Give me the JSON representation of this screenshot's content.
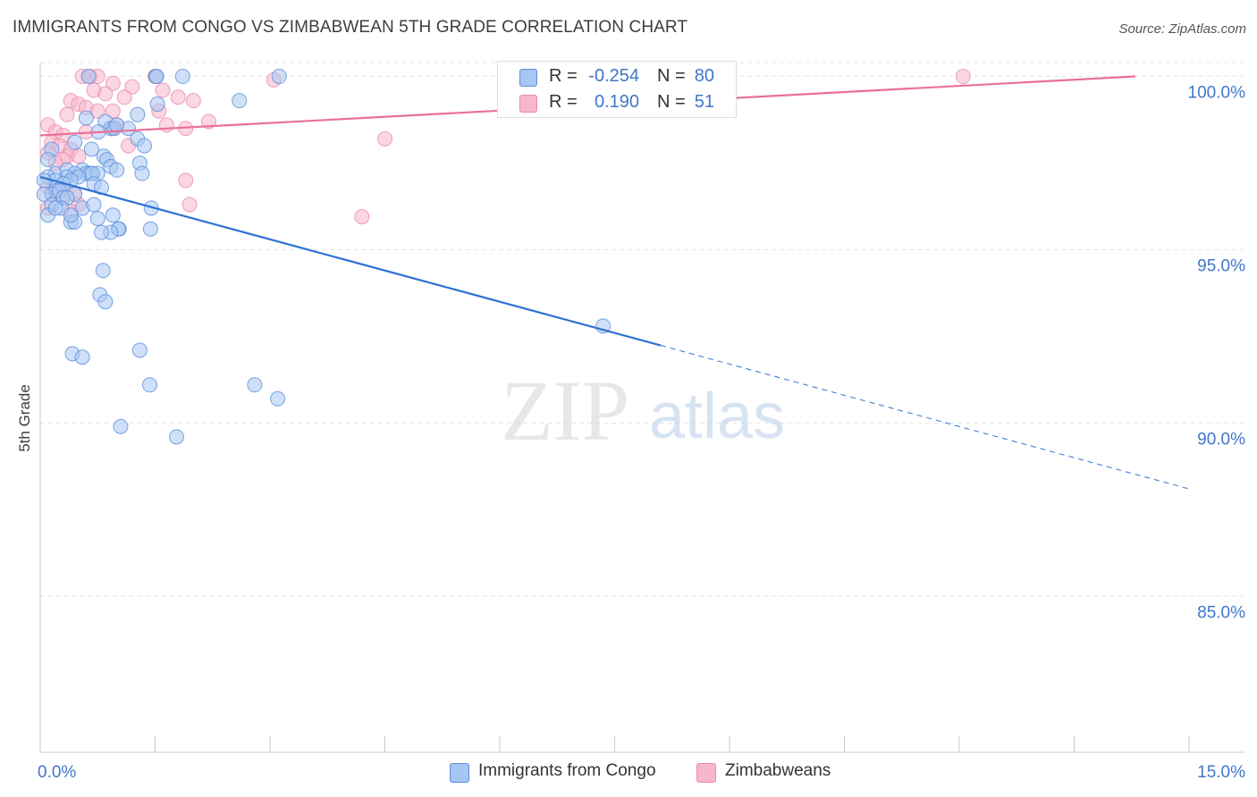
{
  "title": "IMMIGRANTS FROM CONGO VS ZIMBABWEAN 5TH GRADE CORRELATION CHART",
  "source": "Source: ZipAtlas.com",
  "watermark": {
    "zip": "ZIP",
    "atlas": "atlas"
  },
  "colors": {
    "blue_fill": "#a8c6f2",
    "blue_stroke": "#5a8fdc",
    "blue_line": "#2f72d4",
    "pink_fill": "#f6b6cb",
    "pink_stroke": "#ec8aab",
    "pink_line": "#e8709a",
    "tick_text": "#3f77c9",
    "grid": "#e6e6e6"
  },
  "legend_top": [
    {
      "r_label": "R =",
      "r_value": "-0.254",
      "n_label": "N =",
      "n_value": "80"
    },
    {
      "r_label": "R =",
      "r_value": "0.190",
      "n_label": "N =",
      "n_value": "51"
    }
  ],
  "legend_bottom": [
    "Immigrants from Congo",
    "Zimbabweans"
  ],
  "chart_data": {
    "type": "scatter",
    "title": "IMMIGRANTS FROM CONGO VS ZIMBABWEAN 5TH GRADE CORRELATION CHART",
    "xlabel": "",
    "ylabel": "5th Grade",
    "xlim": [
      0,
      15
    ],
    "ylim": [
      80.5,
      100.4
    ],
    "x_tick_labels": [
      "0.0%",
      "15.0%"
    ],
    "y_ticks": [
      85,
      90,
      95,
      100
    ],
    "y_tick_labels": [
      "85.0%",
      "90.0%",
      "95.0%",
      "100.0%"
    ],
    "grid": true,
    "legend_position": "bottom",
    "series": [
      {
        "name": "Immigrants from Congo",
        "r": -0.254,
        "n": 80,
        "trend": {
          "x0": 0,
          "y0": 97.1,
          "x1": 15,
          "y1": 88.1,
          "solid_until_x": 8.1
        },
        "points": [
          [
            0.63,
            100.0
          ],
          [
            1.51,
            100.0
          ],
          [
            1.52,
            100.0
          ],
          [
            1.86,
            100.0
          ],
          [
            3.12,
            100.0
          ],
          [
            2.6,
            99.3
          ],
          [
            1.53,
            99.2
          ],
          [
            1.27,
            98.9
          ],
          [
            0.6,
            98.8
          ],
          [
            0.85,
            98.7
          ],
          [
            0.92,
            98.5
          ],
          [
            0.97,
            98.5
          ],
          [
            1.15,
            98.5
          ],
          [
            0.76,
            98.4
          ],
          [
            1.27,
            98.2
          ],
          [
            1.36,
            98.0
          ],
          [
            0.45,
            98.1
          ],
          [
            0.15,
            97.9
          ],
          [
            0.67,
            97.9
          ],
          [
            0.83,
            97.7
          ],
          [
            0.87,
            97.6
          ],
          [
            0.1,
            97.6
          ],
          [
            1.3,
            97.5
          ],
          [
            0.92,
            97.4
          ],
          [
            0.55,
            97.3
          ],
          [
            1.0,
            97.3
          ],
          [
            0.2,
            97.2
          ],
          [
            0.6,
            97.2
          ],
          [
            0.65,
            97.2
          ],
          [
            0.35,
            97.3
          ],
          [
            0.45,
            97.2
          ],
          [
            0.75,
            97.2
          ],
          [
            0.35,
            97.1
          ],
          [
            0.5,
            97.1
          ],
          [
            1.33,
            97.2
          ],
          [
            0.68,
            97.2
          ],
          [
            0.1,
            97.1
          ],
          [
            0.2,
            97.0
          ],
          [
            0.4,
            97.0
          ],
          [
            0.3,
            96.9
          ],
          [
            0.7,
            96.9
          ],
          [
            0.2,
            96.7
          ],
          [
            0.8,
            96.8
          ],
          [
            0.15,
            96.6
          ],
          [
            0.25,
            96.7
          ],
          [
            0.45,
            96.6
          ],
          [
            0.05,
            96.6
          ],
          [
            0.3,
            96.5
          ],
          [
            0.35,
            96.5
          ],
          [
            0.15,
            96.3
          ],
          [
            0.28,
            96.2
          ],
          [
            0.55,
            96.2
          ],
          [
            1.45,
            96.2
          ],
          [
            0.95,
            96.0
          ],
          [
            0.75,
            95.9
          ],
          [
            0.1,
            96.0
          ],
          [
            0.4,
            95.8
          ],
          [
            0.45,
            95.8
          ],
          [
            1.03,
            95.6
          ],
          [
            1.02,
            95.6
          ],
          [
            1.44,
            95.6
          ],
          [
            0.92,
            95.5
          ],
          [
            0.8,
            95.5
          ],
          [
            0.4,
            96.0
          ],
          [
            0.2,
            96.2
          ],
          [
            0.82,
            94.4
          ],
          [
            0.78,
            93.7
          ],
          [
            0.85,
            93.5
          ],
          [
            7.35,
            92.8
          ],
          [
            1.3,
            92.1
          ],
          [
            0.42,
            92.0
          ],
          [
            0.55,
            91.9
          ],
          [
            1.43,
            91.1
          ],
          [
            2.8,
            91.1
          ],
          [
            3.1,
            90.7
          ],
          [
            1.05,
            89.9
          ],
          [
            1.78,
            89.6
          ],
          [
            0.05,
            97.0
          ],
          [
            1.0,
            98.6
          ],
          [
            0.7,
            96.3
          ]
        ]
      },
      {
        "name": "Zimbabweans",
        "r": 0.19,
        "n": 51,
        "trend": {
          "x0": 0,
          "y0": 98.3,
          "x1": 14.3,
          "y1": 100.0
        },
        "points": [
          [
            0.55,
            100.0
          ],
          [
            0.65,
            100.0
          ],
          [
            0.75,
            100.0
          ],
          [
            1.5,
            100.0
          ],
          [
            3.05,
            99.9
          ],
          [
            12.05,
            100.0
          ],
          [
            0.95,
            99.8
          ],
          [
            1.2,
            99.7
          ],
          [
            0.7,
            99.6
          ],
          [
            1.6,
            99.6
          ],
          [
            0.85,
            99.5
          ],
          [
            1.1,
            99.4
          ],
          [
            1.8,
            99.4
          ],
          [
            2.0,
            99.3
          ],
          [
            0.4,
            99.3
          ],
          [
            0.5,
            99.2
          ],
          [
            0.6,
            99.1
          ],
          [
            0.75,
            99.0
          ],
          [
            0.95,
            99.0
          ],
          [
            0.35,
            98.9
          ],
          [
            1.55,
            99.0
          ],
          [
            2.2,
            98.7
          ],
          [
            1.65,
            98.6
          ],
          [
            1.9,
            98.5
          ],
          [
            0.95,
            98.5
          ],
          [
            1.0,
            98.6
          ],
          [
            0.1,
            98.6
          ],
          [
            0.2,
            98.4
          ],
          [
            0.6,
            98.4
          ],
          [
            0.3,
            98.3
          ],
          [
            4.5,
            98.2
          ],
          [
            0.15,
            98.1
          ],
          [
            1.15,
            98.0
          ],
          [
            0.25,
            98.0
          ],
          [
            0.4,
            97.9
          ],
          [
            0.1,
            97.8
          ],
          [
            0.35,
            97.7
          ],
          [
            0.5,
            97.7
          ],
          [
            0.3,
            97.6
          ],
          [
            0.2,
            97.5
          ],
          [
            1.9,
            97.0
          ],
          [
            0.1,
            96.8
          ],
          [
            0.25,
            96.7
          ],
          [
            0.45,
            96.6
          ],
          [
            0.15,
            96.6
          ],
          [
            0.3,
            96.5
          ],
          [
            0.5,
            96.3
          ],
          [
            1.95,
            96.3
          ],
          [
            0.4,
            96.1
          ],
          [
            0.1,
            96.2
          ],
          [
            4.2,
            95.95
          ]
        ]
      }
    ]
  }
}
